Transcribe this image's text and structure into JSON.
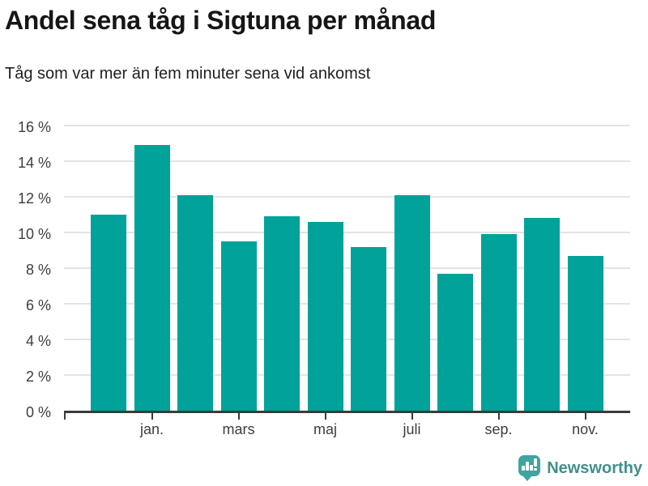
{
  "title": "Andel sena tåg i Sigtuna per månad",
  "subtitle": "Tåg som var mer än fem minuter sena vid ankomst",
  "branding": {
    "logo_text": "Newsworthy",
    "logo_icon": "newsworthy-speech-bubble-bar-chart-icon"
  },
  "colors": {
    "background": "#ffffff",
    "bar": "#00a29a",
    "gridline": "#e4e4e4",
    "axis": "#3b3b3b",
    "tick_text": "#3d3d3d",
    "title_text": "#161616",
    "subtitle_text": "#1f1f1f",
    "logo_icon": "#3ea59e",
    "logo_text": "#42908a"
  },
  "chart_data": {
    "type": "bar",
    "title": "Andel sena tåg i Sigtuna per månad",
    "subtitle": "Tåg som var mer än fem minuter sena vid ankomst",
    "categories": [
      "",
      "jan.",
      "",
      "mars",
      "",
      "maj",
      "",
      "juli",
      "",
      "sep.",
      "",
      "nov."
    ],
    "values": [
      11.0,
      14.9,
      12.1,
      9.5,
      10.9,
      10.6,
      9.2,
      12.1,
      7.7,
      9.9,
      10.8,
      8.7
    ],
    "unit": "%",
    "xlabel": "",
    "ylabel": "",
    "ylim": [
      0,
      16
    ],
    "ytick_step": 2,
    "yticks": [
      "0 %",
      "2 %",
      "4 %",
      "6 %",
      "8 %",
      "10 %",
      "12 %",
      "14 %",
      "16 %"
    ],
    "grid": "horizontal-only",
    "legend": "none"
  }
}
